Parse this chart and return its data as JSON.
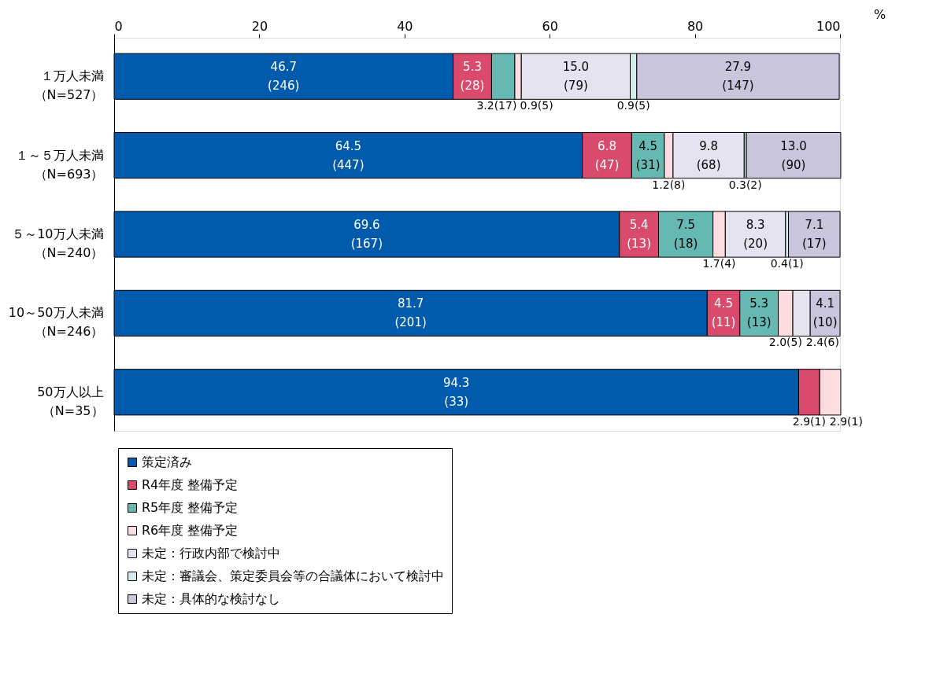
{
  "chart_data": {
    "type": "bar",
    "orientation": "horizontal",
    "stacked": true,
    "xlabel": "%",
    "categories": [
      "１万人未満（N=527）",
      "１～５万人未満（N=693）",
      "５～10万人未満（N=240）",
      "10～50万人未満（N=246）",
      "50万人以上（N=35）"
    ],
    "series": [
      {
        "name": "策定済み",
        "color": "#005bac",
        "values": [
          46.7,
          64.5,
          69.6,
          81.7,
          94.3
        ],
        "value_labels": [
          "46.7\n(246)",
          "64.5\n(447)",
          "69.6\n(167)",
          "81.7\n(201)",
          "94.3\n(33)"
        ]
      },
      {
        "name": "R4年度 整備予定",
        "color": "#d94a6c",
        "values": [
          5.3,
          6.8,
          5.4,
          4.5,
          2.9
        ],
        "value_labels": [
          "5.3\n(28)",
          "6.8\n(47)",
          "5.4\n(13)",
          "4.5\n(11)",
          "2.9(1)"
        ]
      },
      {
        "name": "R5年度 整備予定",
        "color": "#66b8b2",
        "values": [
          3.2,
          4.5,
          7.5,
          5.3,
          0
        ],
        "value_labels": [
          "3.2(17)",
          "4.5\n(31)",
          "7.5\n(18)",
          "5.3\n(13)",
          null
        ]
      },
      {
        "name": "R6年度 整備予定",
        "color": "#fddde0",
        "values": [
          0.9,
          1.2,
          1.7,
          2.0,
          2.9
        ],
        "value_labels": [
          "0.9(5)",
          "1.2(8)",
          "1.7(4)",
          "2.0(5)",
          "2.9(1)"
        ]
      },
      {
        "name": "未定：行政内部で検討中",
        "color": "#e5e3ef",
        "values": [
          15.0,
          9.8,
          8.3,
          2.4,
          0
        ],
        "value_labels": [
          "15.0\n(79)",
          "9.8\n(68)",
          "8.3\n(20)",
          "2.4(6)",
          null
        ]
      },
      {
        "name": "未定：審議会、策定委員会等の合議体において検討中",
        "color": "#d5ecec",
        "values": [
          0.9,
          0.3,
          0.4,
          0,
          0
        ],
        "value_labels": [
          "0.9(5)",
          "0.3(2)",
          "0.4(1)",
          null,
          null
        ]
      },
      {
        "name": "未定：具体的な検討なし",
        "color": "#c8c5dc",
        "values": [
          27.9,
          13.0,
          7.1,
          4.1,
          0
        ],
        "value_labels": [
          "27.9\n(147)",
          "13.0\n(90)",
          "7.1\n(17)",
          "4.1\n(10)",
          null
        ]
      }
    ],
    "xlim": [
      0,
      100
    ],
    "xticks": [
      0,
      20,
      40,
      60,
      80,
      100
    ],
    "grid": false,
    "legend": "bottom"
  }
}
